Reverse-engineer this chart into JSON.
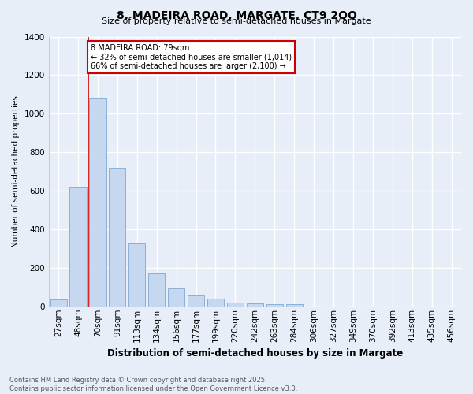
{
  "title_line1": "8, MADEIRA ROAD, MARGATE, CT9 2QQ",
  "title_line2": "Size of property relative to semi-detached houses in Margate",
  "categories": [
    "27sqm",
    "48sqm",
    "70sqm",
    "91sqm",
    "113sqm",
    "134sqm",
    "156sqm",
    "177sqm",
    "199sqm",
    "220sqm",
    "242sqm",
    "263sqm",
    "284sqm",
    "306sqm",
    "327sqm",
    "349sqm",
    "370sqm",
    "392sqm",
    "413sqm",
    "435sqm",
    "456sqm"
  ],
  "values": [
    35,
    620,
    1085,
    720,
    325,
    170,
    95,
    60,
    40,
    20,
    15,
    10,
    10,
    0,
    0,
    0,
    0,
    0,
    0,
    0,
    0
  ],
  "bar_color": "#c5d8f0",
  "bar_edge_color": "#8ab0d8",
  "ylabel": "Number of semi-detached properties",
  "xlabel": "Distribution of semi-detached houses by size in Margate",
  "ylim": [
    0,
    1400
  ],
  "yticks": [
    0,
    200,
    400,
    600,
    800,
    1000,
    1200,
    1400
  ],
  "property_bin_index": 1.5,
  "annotation_title": "8 MADEIRA ROAD: 79sqm",
  "annotation_line2": "← 32% of semi-detached houses are smaller (1,014)",
  "annotation_line3": "66% of semi-detached houses are larger (2,100) →",
  "vline_color": "#cc0000",
  "annotation_box_facecolor": "#ffffff",
  "annotation_box_edgecolor": "#cc0000",
  "background_color": "#e8eef8",
  "grid_color": "#ffffff",
  "title_fontsize": 10,
  "subtitle_fontsize": 8,
  "footer_line1": "Contains HM Land Registry data © Crown copyright and database right 2025.",
  "footer_line2": "Contains public sector information licensed under the Open Government Licence v3.0."
}
